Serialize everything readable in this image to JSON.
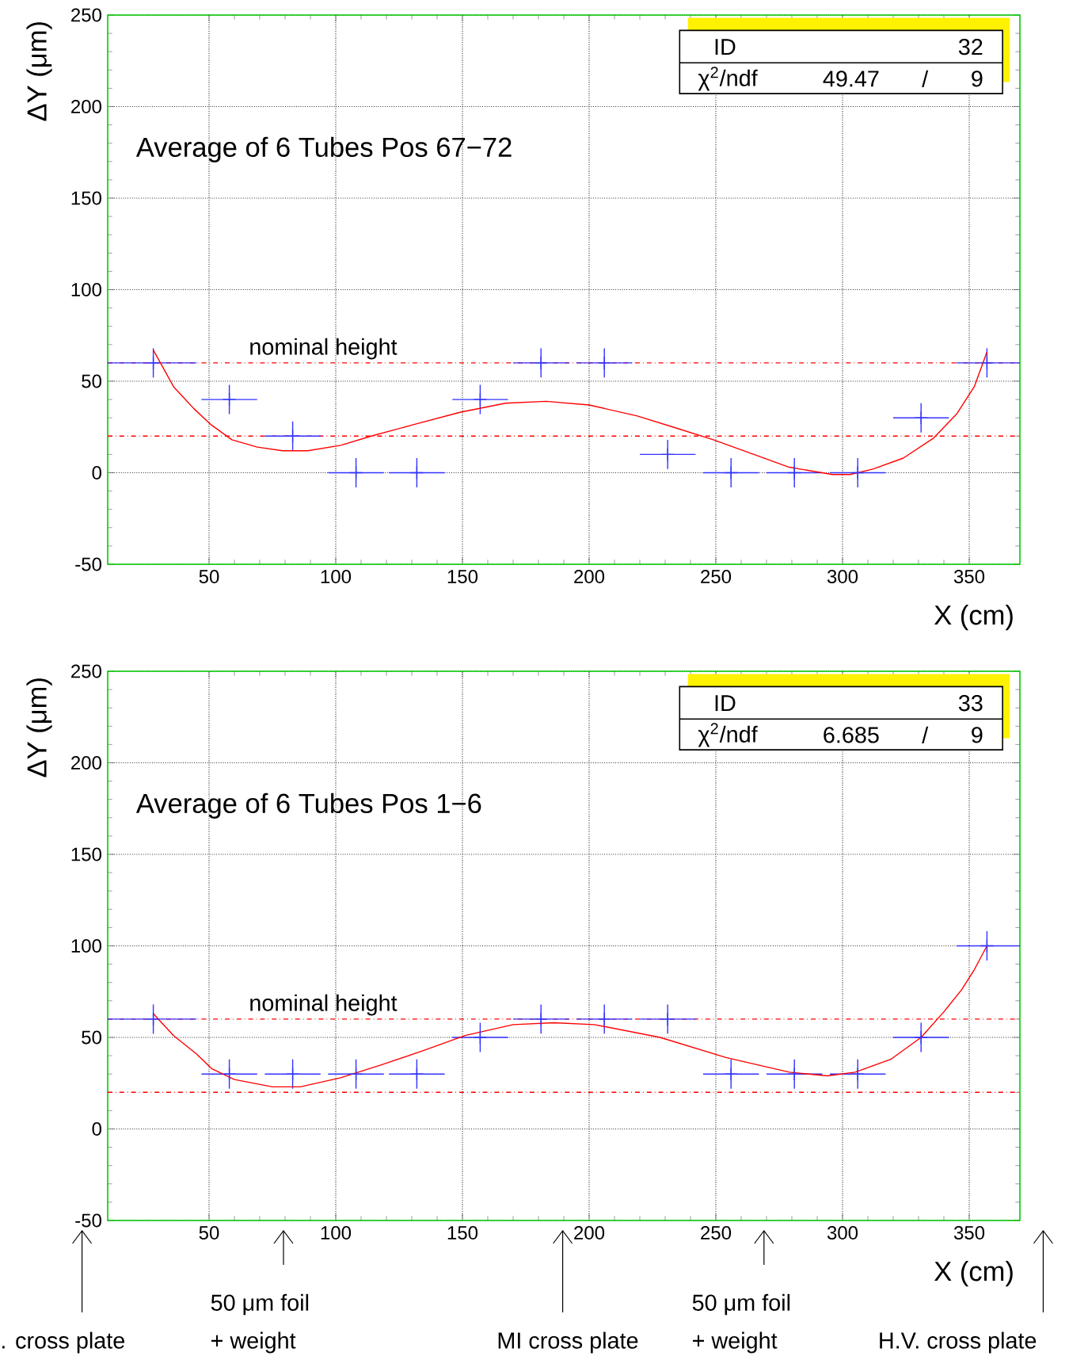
{
  "chart_data": [
    {
      "type": "scatter",
      "title": "Average of 6 Tubes   Pos 67−72",
      "xlabel": "X  (cm)",
      "ylabel": "ΔY  (μm)",
      "xlim": [
        10,
        370
      ],
      "ylim": [
        -50,
        250
      ],
      "xticks": [
        50,
        100,
        150,
        200,
        250,
        300,
        350
      ],
      "yticks": [
        -50,
        0,
        50,
        100,
        150,
        200,
        250
      ],
      "grid": true,
      "ref_lines": [
        {
          "axis": "y",
          "value": 60,
          "label": "nominal height",
          "color": "#ff0000",
          "line_style": "dashdot"
        },
        {
          "axis": "y",
          "value": 20,
          "color": "#ff0000",
          "line_style": "dashdot"
        }
      ],
      "annotations": [
        "ID",
        "32",
        "χ$^{2}$/ndf",
        "49.47",
        "/",
        "9"
      ],
      "series": [
        {
          "color": "#3333ff",
          "marker": "cross",
          "x": [
            28,
            58,
            83,
            108,
            132,
            157,
            181,
            206,
            231,
            256,
            281,
            306,
            331,
            357
          ],
          "values": [
            60,
            40,
            20,
            0,
            0,
            40,
            60,
            60,
            10,
            0,
            0,
            0,
            30,
            60
          ],
          "errors": [
            8,
            8,
            8,
            8,
            8,
            8,
            8,
            8,
            8,
            8,
            8,
            8,
            8,
            8
          ],
          "xerrors": [
            [
              10,
              45
            ],
            11,
            11,
            11,
            11,
            11,
            11,
            11,
            11,
            11,
            11,
            11,
            11,
            [
              345,
              370
            ]
          ]
        },
        {
          "type": "line",
          "color": "#ff0000",
          "x": [
            28,
            36,
            44,
            51,
            59,
            69,
            79,
            89,
            102,
            114,
            130,
            149,
            167,
            183,
            200,
            219,
            233,
            249,
            265,
            279,
            296,
            303,
            312,
            324,
            336,
            345,
            352,
            357
          ],
          "values": [
            67,
            47,
            35,
            26,
            18,
            14,
            12,
            12,
            15,
            20,
            26,
            33,
            38,
            39,
            37,
            31,
            25,
            18,
            10,
            3,
            -1,
            -1,
            2,
            8,
            19,
            32,
            47,
            66
          ]
        }
      ]
    },
    {
      "type": "scatter",
      "title": "Average of 6 Tubes   Pos  1−6",
      "xlabel": "X  (cm)",
      "ylabel": "ΔY  (μm)",
      "xlim": [
        10,
        370
      ],
      "ylim": [
        -50,
        250
      ],
      "xticks": [
        50,
        100,
        150,
        200,
        250,
        300,
        350
      ],
      "yticks": [
        -50,
        0,
        50,
        100,
        150,
        200,
        250
      ],
      "grid": true,
      "ref_lines": [
        {
          "axis": "y",
          "value": 60,
          "label": "nominal height",
          "color": "#ff0000",
          "line_style": "dashdot"
        },
        {
          "axis": "y",
          "value": 20,
          "color": "#ff0000",
          "line_style": "dashdot"
        }
      ],
      "annotations": [
        "ID",
        "33",
        "χ$^{2}$/ndf",
        "6.685",
        "/",
        "9",
        ". cross plate",
        "50 μm foil",
        "+ weight",
        "MI cross plate",
        "50 μm foil",
        "+ weight",
        "H.V. cross plate"
      ],
      "series": [
        {
          "color": "#3333ff",
          "marker": "cross",
          "x": [
            28,
            58,
            83,
            108,
            132,
            157,
            181,
            206,
            231,
            256,
            281,
            306,
            331,
            357
          ],
          "values": [
            60,
            30,
            30,
            30,
            30,
            50,
            60,
            60,
            60,
            30,
            30,
            30,
            50,
            100
          ],
          "errors": [
            8,
            8,
            8,
            8,
            8,
            8,
            8,
            8,
            8,
            8,
            8,
            8,
            8,
            8
          ],
          "xerrors": [
            [
              10,
              45
            ],
            11,
            11,
            11,
            11,
            11,
            11,
            11,
            11,
            11,
            11,
            11,
            11,
            [
              345,
              370
            ]
          ]
        },
        {
          "type": "line",
          "color": "#ff0000",
          "x": [
            28,
            36,
            45,
            51,
            60,
            75,
            86,
            102,
            118,
            135,
            151,
            170,
            186,
            202,
            228,
            254,
            279,
            294,
            305,
            319,
            331,
            340,
            347,
            352,
            357
          ],
          "values": [
            63,
            51,
            41,
            33,
            27,
            23,
            23,
            28,
            35,
            43,
            51,
            57,
            58,
            57,
            50,
            39,
            31,
            29,
            31,
            38,
            50,
            64,
            76,
            87,
            100
          ]
        }
      ]
    }
  ]
}
